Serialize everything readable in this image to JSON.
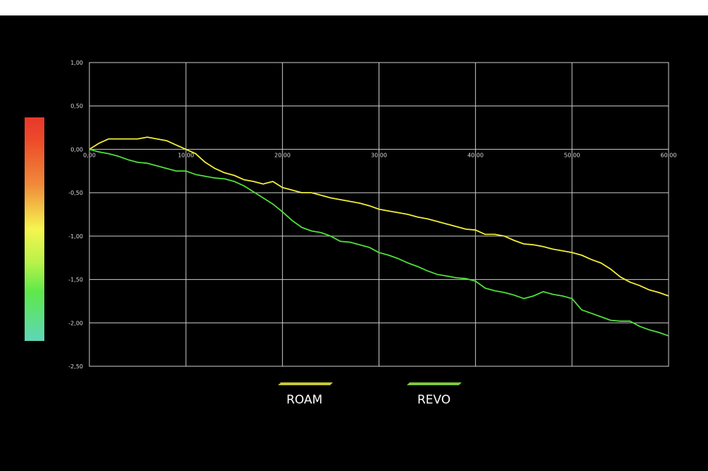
{
  "chart_data": {
    "type": "line",
    "title": "",
    "xlabel": "",
    "ylabel": "",
    "xlim": [
      0,
      60
    ],
    "ylim": [
      -2.5,
      1.0
    ],
    "grid": true,
    "legend_position": "bottom",
    "x_ticks": [
      "0,00",
      "10,00",
      "20,00",
      "30,00",
      "40,00",
      "50,00",
      "60,00"
    ],
    "y_ticks": [
      "1,00",
      "0,50",
      "0,00",
      "-0,50",
      "-1,00",
      "-1,50",
      "-2,00",
      "-2,50"
    ],
    "x": [
      0,
      1,
      2,
      3,
      4,
      5,
      6,
      7,
      8,
      9,
      10,
      11,
      12,
      13,
      14,
      15,
      16,
      17,
      18,
      19,
      20,
      21,
      22,
      23,
      24,
      25,
      26,
      27,
      28,
      29,
      30,
      31,
      32,
      33,
      34,
      35,
      36,
      37,
      38,
      39,
      40,
      41,
      42,
      43,
      44,
      45,
      46,
      47,
      48,
      49,
      50,
      51,
      52,
      53,
      54,
      55,
      56,
      57,
      58,
      59,
      60
    ],
    "series": [
      {
        "name": "ROAM",
        "color": "#f2ee3a",
        "values": [
          0,
          0.07,
          0.12,
          0.12,
          0.12,
          0.12,
          0.14,
          0.12,
          0.1,
          0.05,
          0.0,
          -0.05,
          -0.15,
          -0.22,
          -0.27,
          -0.3,
          -0.35,
          -0.37,
          -0.4,
          -0.37,
          -0.44,
          -0.47,
          -0.5,
          -0.5,
          -0.53,
          -0.56,
          -0.58,
          -0.6,
          -0.62,
          -0.65,
          -0.69,
          -0.71,
          -0.73,
          -0.75,
          -0.78,
          -0.8,
          -0.83,
          -0.86,
          -0.89,
          -0.92,
          -0.93,
          -0.98,
          -0.98,
          -1.0,
          -1.05,
          -1.09,
          -1.1,
          -1.12,
          -1.15,
          -1.17,
          -1.19,
          -1.22,
          -1.27,
          -1.31,
          -1.38,
          -1.47,
          -1.53,
          -1.57,
          -1.62,
          -1.65,
          -1.69
        ]
      },
      {
        "name": "REVO",
        "color": "#4fe03a",
        "values": [
          0,
          -0.03,
          -0.05,
          -0.08,
          -0.12,
          -0.15,
          -0.16,
          -0.19,
          -0.22,
          -0.25,
          -0.25,
          -0.29,
          -0.31,
          -0.33,
          -0.34,
          -0.37,
          -0.42,
          -0.49,
          -0.56,
          -0.63,
          -0.72,
          -0.82,
          -0.9,
          -0.94,
          -0.96,
          -1.0,
          -1.06,
          -1.07,
          -1.1,
          -1.13,
          -1.19,
          -1.22,
          -1.26,
          -1.31,
          -1.35,
          -1.4,
          -1.44,
          -1.46,
          -1.48,
          -1.49,
          -1.52,
          -1.6,
          -1.63,
          -1.65,
          -1.68,
          -1.72,
          -1.69,
          -1.64,
          -1.67,
          -1.69,
          -1.72,
          -1.85,
          -1.89,
          -1.93,
          -1.97,
          -1.98,
          -1.98,
          -2.04,
          -2.08,
          -2.11,
          -2.15
        ]
      }
    ],
    "legend": [
      {
        "label": "ROAM",
        "color": "#c8c832"
      },
      {
        "label": "REVO",
        "color": "#7cc83a"
      }
    ],
    "colorbar": {
      "colors": [
        "#e8382b",
        "#f08a3a",
        "#f5f54f",
        "#5ee84a",
        "#5ed6b8"
      ]
    }
  }
}
